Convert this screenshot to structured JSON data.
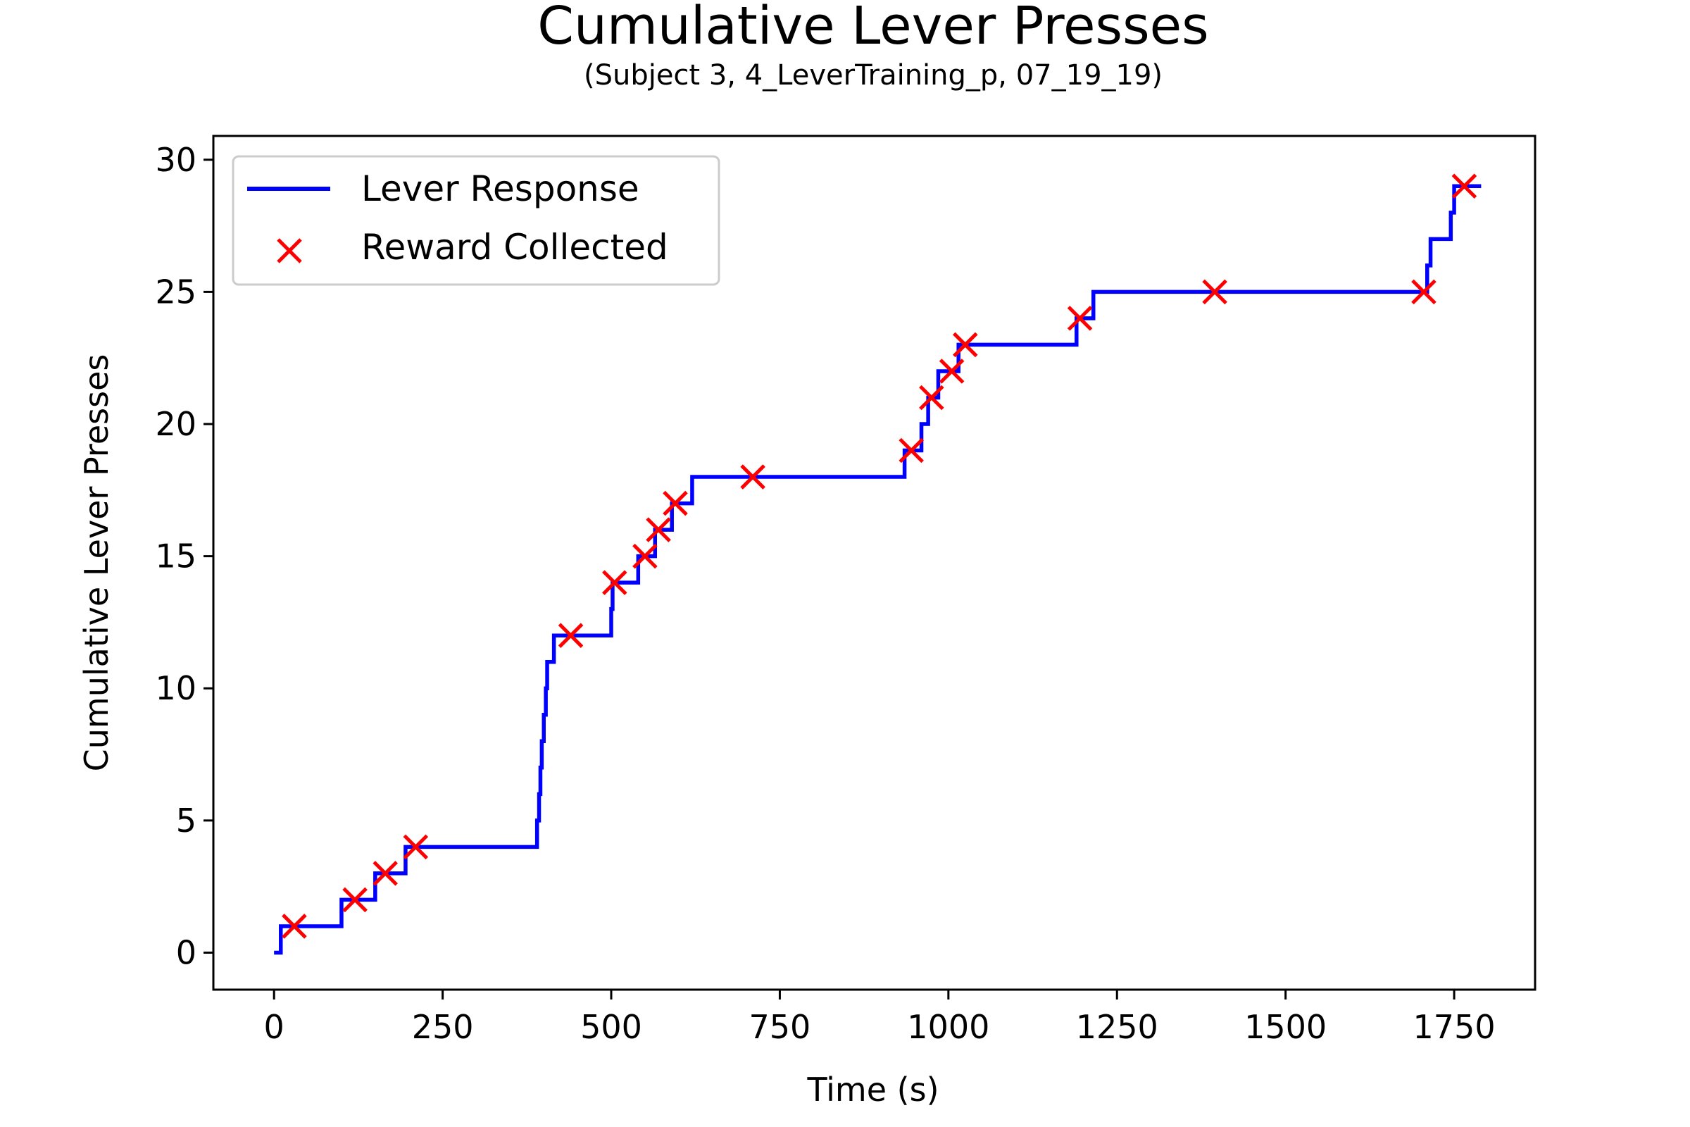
{
  "chart_data": {
    "type": "line",
    "title": "Cumulative Lever Presses",
    "subtitle": "(Subject 3, 4_LeverTraining_p, 07_19_19)",
    "xlabel": "Time (s)",
    "ylabel": "Cumulative Lever Presses",
    "xlim": [
      -90,
      1870
    ],
    "ylim": [
      -1.4,
      30.9
    ],
    "x_ticks": [
      0,
      250,
      500,
      750,
      1000,
      1250,
      1500,
      1750
    ],
    "y_ticks": [
      0,
      5,
      10,
      15,
      20,
      25,
      30
    ],
    "grid": false,
    "legend": {
      "position": "top-left"
    },
    "colors": {
      "line": "#0000ff",
      "marker": "#ff0000",
      "axes": "#000000"
    },
    "series": [
      {
        "name": "Lever Response",
        "kind": "step",
        "x": [
          0,
          10,
          100,
          150,
          195,
          390,
          393,
          395,
          397,
          400,
          403,
          405,
          410,
          415,
          500,
          502,
          540,
          565,
          590,
          620,
          935,
          940,
          960,
          970,
          985,
          1010,
          1015,
          1190,
          1200,
          1215,
          1705,
          1710,
          1715,
          1745,
          1750,
          1755,
          1790
        ],
        "y": [
          0,
          1,
          2,
          3,
          4,
          5,
          6,
          7,
          8,
          9,
          10,
          11,
          11,
          12,
          13,
          14,
          15,
          16,
          17,
          18,
          19,
          19,
          20,
          21,
          22,
          22,
          23,
          24,
          24,
          25,
          25,
          26,
          27,
          28,
          29,
          29,
          29
        ]
      },
      {
        "name": "Reward Collected",
        "kind": "scatter",
        "marker": "x",
        "x": [
          30,
          120,
          165,
          210,
          440,
          505,
          550,
          570,
          595,
          710,
          945,
          975,
          1005,
          1025,
          1195,
          1395,
          1705,
          1765
        ],
        "y": [
          1,
          2,
          3,
          4,
          12,
          14,
          15,
          16,
          17,
          18,
          19,
          21,
          22,
          23,
          24,
          25,
          25,
          29
        ]
      }
    ]
  }
}
